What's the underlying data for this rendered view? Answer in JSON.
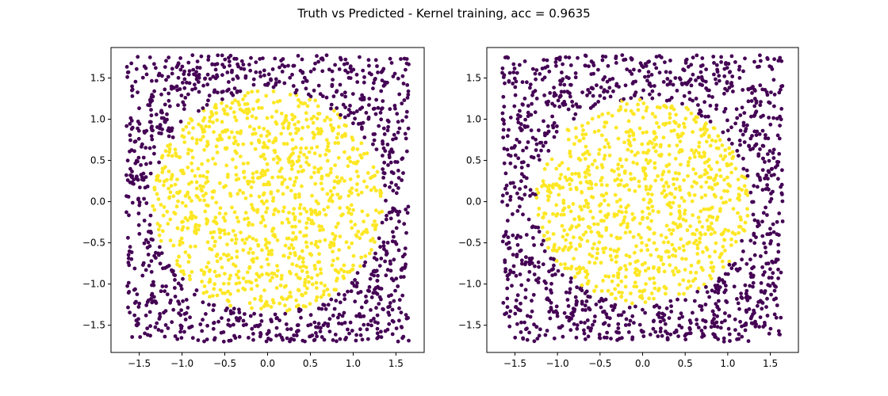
{
  "figure": {
    "title": "Truth vs Predicted - Kernel training, acc = 0.9635"
  },
  "colors": {
    "class_0": "#440154",
    "class_1": "#fde725",
    "axes": "#000000",
    "background": "#ffffff"
  },
  "chart_data": [
    {
      "type": "scatter",
      "panel": "truth",
      "title": "",
      "xlabel": "",
      "ylabel": "",
      "xlim": [
        -1.83,
        1.83
      ],
      "ylim": [
        -1.83,
        1.87
      ],
      "xticks": [
        -1.5,
        -1.0,
        -0.5,
        0.0,
        0.5,
        1.0,
        1.5
      ],
      "xtick_labels": [
        "−1.5",
        "−1.0",
        "−0.5",
        "0.0",
        "0.5",
        "1.0",
        "1.5"
      ],
      "yticks": [
        -1.5,
        -1.0,
        -0.5,
        0.0,
        0.5,
        1.0,
        1.5
      ],
      "ytick_labels": [
        "−1.5",
        "−1.0",
        "−0.5",
        "0.0",
        "0.5",
        "1.0",
        "1.5"
      ],
      "grid": false,
      "legend": "none",
      "classes": [
        0,
        1
      ],
      "data_region": {
        "x": [
          -1.65,
          1.65
        ],
        "y": [
          -1.7,
          1.78
        ]
      },
      "class_boundary": {
        "shape": "circle",
        "center": [
          0.0,
          0.0
        ],
        "radius": 1.35,
        "inside_class": 1,
        "outside_class": 0
      },
      "point_count": 2000
    },
    {
      "type": "scatter",
      "panel": "predicted",
      "title": "",
      "xlabel": "",
      "ylabel": "",
      "xlim": [
        -1.83,
        1.83
      ],
      "ylim": [
        -1.83,
        1.87
      ],
      "xticks": [
        -1.5,
        -1.0,
        -0.5,
        0.0,
        0.5,
        1.0,
        1.5
      ],
      "xtick_labels": [
        "−1.5",
        "−1.0",
        "−0.5",
        "0.0",
        "0.5",
        "1.0",
        "1.5"
      ],
      "yticks": [
        -1.5,
        -1.0,
        -0.5,
        0.0,
        0.5,
        1.0,
        1.5
      ],
      "ytick_labels": [
        "−1.5",
        "−1.0",
        "−0.5",
        "0.0",
        "0.5",
        "1.0",
        "1.5"
      ],
      "grid": false,
      "legend": "none",
      "classes": [
        0,
        1
      ],
      "data_region": {
        "x": [
          -1.65,
          1.65
        ],
        "y": [
          -1.7,
          1.78
        ]
      },
      "class_boundary": {
        "shape": "circle",
        "center": [
          0.0,
          0.0
        ],
        "radius": 1.25,
        "inside_class": 1,
        "outside_class": 0
      },
      "point_count": 2000
    }
  ]
}
